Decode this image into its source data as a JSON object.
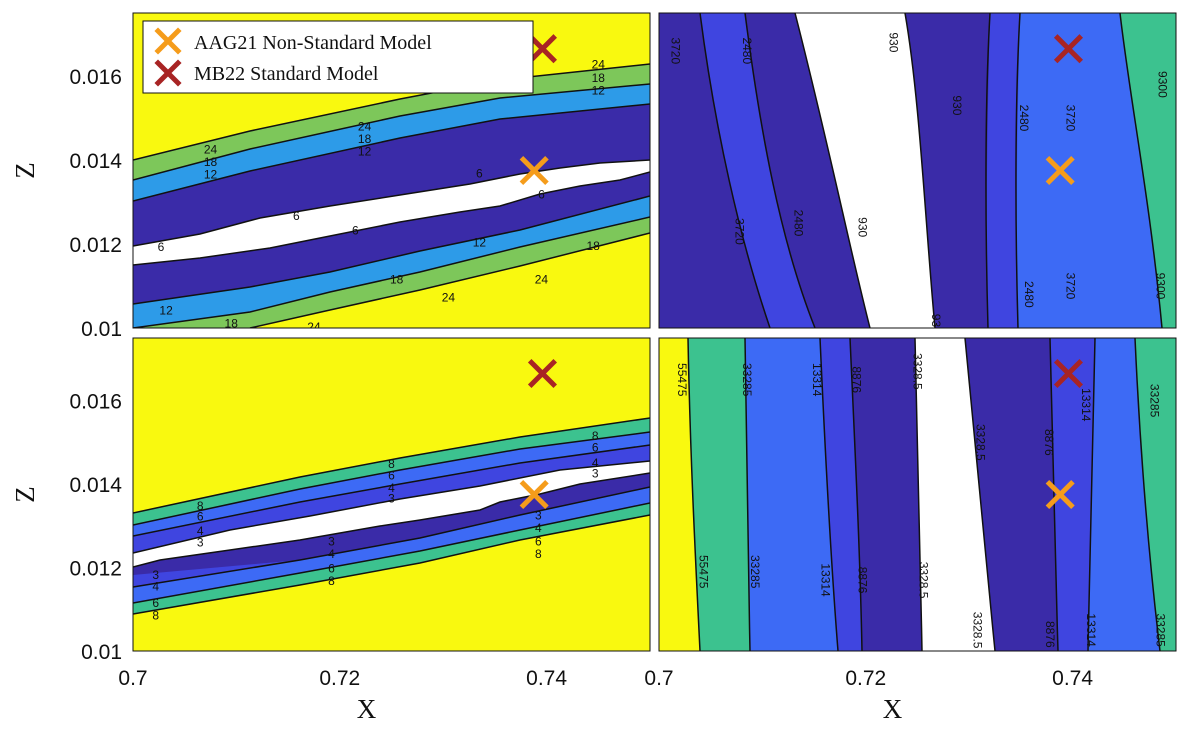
{
  "chart_data": {
    "type": "contour",
    "xlabel": "X",
    "ylabel": "Z",
    "x_ticks": [
      "0.7",
      "0.72",
      "0.74"
    ],
    "y_ticks": [
      "0.016",
      "0.014",
      "0.012",
      "0.01"
    ],
    "xlim": [
      0.7,
      0.75
    ],
    "ylim": [
      0.01,
      0.0175
    ],
    "colors": {
      "yellow": "#f9f90f",
      "green": "#7dc75a",
      "lightblue": "#2d9be8",
      "navy": "#3a2ba8",
      "royal": "#3f45e0",
      "cornflower": "#3d6af5",
      "teal": "#3cc28f",
      "white": "#ffffff",
      "orange_marker": "#f59c1b",
      "red_marker": "#a82424"
    },
    "legend": [
      {
        "label": "AAG21 Non-Standard Model",
        "marker": "orange-x"
      },
      {
        "label": "MB22 Standard Model",
        "marker": "red-x"
      }
    ],
    "markers": [
      {
        "name": "AAG21 Non-Standard Model",
        "x": 0.7388,
        "z": 0.01375
      },
      {
        "name": "MB22 Standard Model",
        "x": 0.7396,
        "z": 0.01665
      }
    ],
    "panels": [
      {
        "id": "top-left",
        "level_labels": [
          "6",
          "12",
          "18",
          "24"
        ],
        "contour_labels": [
          {
            "t": "24",
            "x": 0.7075,
            "z": 0.01425
          },
          {
            "t": "18",
            "x": 0.7075,
            "z": 0.01395
          },
          {
            "t": "12",
            "x": 0.7075,
            "z": 0.01365
          },
          {
            "t": "24",
            "x": 0.7224,
            "z": 0.0148
          },
          {
            "t": "18",
            "x": 0.7224,
            "z": 0.0145
          },
          {
            "t": "12",
            "x": 0.7224,
            "z": 0.0142
          },
          {
            "t": "6",
            "x": 0.7158,
            "z": 0.01267
          },
          {
            "t": "6",
            "x": 0.7335,
            "z": 0.01368
          },
          {
            "t": "6",
            "x": 0.7395,
            "z": 0.01318
          },
          {
            "t": "6",
            "x": 0.7215,
            "z": 0.01232
          },
          {
            "t": "6",
            "x": 0.7027,
            "z": 0.01193
          },
          {
            "t": "12",
            "x": 0.7335,
            "z": 0.01203
          },
          {
            "t": "18",
            "x": 0.7445,
            "z": 0.01195
          },
          {
            "t": "18",
            "x": 0.7255,
            "z": 0.01115
          },
          {
            "t": "24",
            "x": 0.7395,
            "z": 0.01116
          },
          {
            "t": "24",
            "x": 0.7305,
            "z": 0.01073
          },
          {
            "t": "12",
            "x": 0.7032,
            "z": 0.01042
          },
          {
            "t": "18",
            "x": 0.7095,
            "z": 0.01011
          },
          {
            "t": "24",
            "x": 0.7175,
            "z": 0.01002
          },
          {
            "t": "24",
            "x": 0.745,
            "z": 0.01627
          },
          {
            "t": "18",
            "x": 0.745,
            "z": 0.01595
          },
          {
            "t": "12",
            "x": 0.745,
            "z": 0.01565
          }
        ]
      },
      {
        "id": "top-right",
        "level_labels": [
          "930",
          "2480",
          "3720",
          "9300"
        ],
        "contour_labels": [
          {
            "t": "3720",
            "x": 0.7016,
            "z": 0.0166
          },
          {
            "t": "2480",
            "x": 0.7085,
            "z": 0.0166
          },
          {
            "t": "930",
            "x": 0.7227,
            "z": 0.0168
          },
          {
            "t": "930",
            "x": 0.7288,
            "z": 0.0153
          },
          {
            "t": "2480",
            "x": 0.7353,
            "z": 0.015
          },
          {
            "t": "3720",
            "x": 0.7398,
            "z": 0.015
          },
          {
            "t": "9300",
            "x": 0.7487,
            "z": 0.0158
          },
          {
            "t": "3720",
            "x": 0.7078,
            "z": 0.0123
          },
          {
            "t": "2480",
            "x": 0.7135,
            "z": 0.0125
          },
          {
            "t": "930",
            "x": 0.7197,
            "z": 0.0124
          },
          {
            "t": "930",
            "x": 0.7268,
            "z": 0.0101
          },
          {
            "t": "2480",
            "x": 0.7358,
            "z": 0.0108
          },
          {
            "t": "3720",
            "x": 0.7398,
            "z": 0.011
          },
          {
            "t": "9300",
            "x": 0.7485,
            "z": 0.011
          }
        ]
      },
      {
        "id": "bottom-left",
        "level_labels": [
          "3",
          "4",
          "6",
          "8"
        ],
        "contour_labels": [
          {
            "t": "8",
            "x": 0.7065,
            "z": 0.01348
          },
          {
            "t": "6",
            "x": 0.7065,
            "z": 0.01322
          },
          {
            "t": "4",
            "x": 0.7065,
            "z": 0.01288
          },
          {
            "t": "3",
            "x": 0.7065,
            "z": 0.0126
          },
          {
            "t": "8",
            "x": 0.725,
            "z": 0.01448
          },
          {
            "t": "6",
            "x": 0.725,
            "z": 0.0142
          },
          {
            "t": "4",
            "x": 0.725,
            "z": 0.0139
          },
          {
            "t": "3",
            "x": 0.725,
            "z": 0.01365
          },
          {
            "t": "3",
            "x": 0.7192,
            "z": 0.01262
          },
          {
            "t": "4",
            "x": 0.7192,
            "z": 0.01232
          },
          {
            "t": "6",
            "x": 0.7192,
            "z": 0.01198
          },
          {
            "t": "8",
            "x": 0.7192,
            "z": 0.01168
          },
          {
            "t": "3",
            "x": 0.7392,
            "z": 0.01325
          },
          {
            "t": "4",
            "x": 0.7392,
            "z": 0.01295
          },
          {
            "t": "6",
            "x": 0.7392,
            "z": 0.01262
          },
          {
            "t": "8",
            "x": 0.7392,
            "z": 0.01232
          },
          {
            "t": "3",
            "x": 0.7022,
            "z": 0.01182
          },
          {
            "t": "4",
            "x": 0.7022,
            "z": 0.01155
          },
          {
            "t": "6",
            "x": 0.7022,
            "z": 0.01115
          },
          {
            "t": "8",
            "x": 0.7022,
            "z": 0.01085
          },
          {
            "t": "8",
            "x": 0.7447,
            "z": 0.01515
          },
          {
            "t": "6",
            "x": 0.7447,
            "z": 0.01488
          },
          {
            "t": "4",
            "x": 0.7447,
            "z": 0.0145
          },
          {
            "t": "3",
            "x": 0.7447,
            "z": 0.01425
          }
        ]
      },
      {
        "id": "bottom-right",
        "level_labels": [
          "55475",
          "33285",
          "13314",
          "8876",
          "3328.5"
        ],
        "contour_labels": [
          {
            "t": "55475",
            "x": 0.7022,
            "z": 0.0165
          },
          {
            "t": "33285",
            "x": 0.7085,
            "z": 0.0165
          },
          {
            "t": "13314",
            "x": 0.7153,
            "z": 0.0165
          },
          {
            "t": "8876",
            "x": 0.7191,
            "z": 0.0165
          },
          {
            "t": "3328.5",
            "x": 0.725,
            "z": 0.0167
          },
          {
            "t": "3328.5",
            "x": 0.7311,
            "z": 0.015
          },
          {
            "t": "8876",
            "x": 0.7377,
            "z": 0.015
          },
          {
            "t": "13314",
            "x": 0.7413,
            "z": 0.0159
          },
          {
            "t": "33285",
            "x": 0.7479,
            "z": 0.016
          },
          {
            "t": "55475",
            "x": 0.7043,
            "z": 0.0119
          },
          {
            "t": "33285",
            "x": 0.7093,
            "z": 0.0119
          },
          {
            "t": "13314",
            "x": 0.7161,
            "z": 0.0117
          },
          {
            "t": "8876",
            "x": 0.7197,
            "z": 0.0117
          },
          {
            "t": "3328.5",
            "x": 0.7256,
            "z": 0.0117
          },
          {
            "t": "3328.5",
            "x": 0.7308,
            "z": 0.0105
          },
          {
            "t": "8876",
            "x": 0.7378,
            "z": 0.0104
          },
          {
            "t": "13314",
            "x": 0.7418,
            "z": 0.0105
          },
          {
            "t": "33285",
            "x": 0.7485,
            "z": 0.0105
          }
        ]
      }
    ]
  }
}
